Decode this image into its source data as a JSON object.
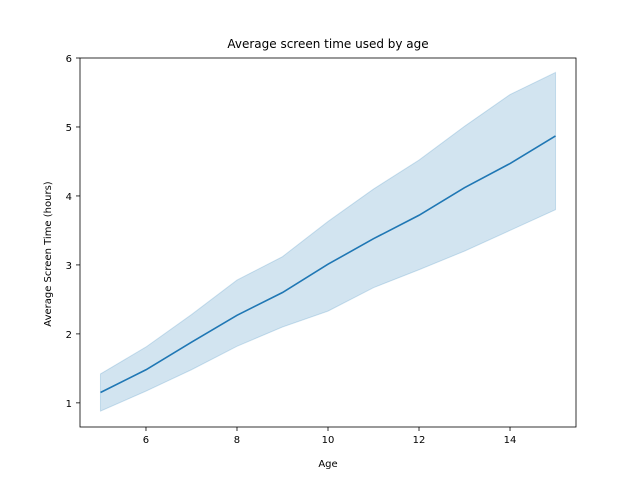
{
  "chart_data": {
    "type": "line",
    "title": "Average screen time used by age",
    "xlabel": "Age",
    "ylabel": "Average Screen Time (hours)",
    "xlim": [
      4.55,
      15.45
    ],
    "ylim": [
      0.65,
      6.0
    ],
    "xticks": [
      6,
      8,
      10,
      12,
      14
    ],
    "yticks": [
      1,
      2,
      3,
      4,
      5,
      6
    ],
    "grid": false,
    "series": [
      {
        "x": [
          5,
          6,
          7,
          8,
          9,
          10,
          11,
          12,
          13,
          14,
          15
        ],
        "y": [
          1.15,
          1.48,
          1.88,
          2.27,
          2.6,
          3.01,
          3.38,
          3.72,
          4.12,
          4.47,
          4.87
        ],
        "ci_lower": [
          0.88,
          1.17,
          1.48,
          1.82,
          2.1,
          2.33,
          2.67,
          2.93,
          3.2,
          3.5,
          3.8
        ],
        "ci_upper": [
          1.42,
          1.81,
          2.28,
          2.78,
          3.12,
          3.63,
          4.1,
          4.52,
          5.01,
          5.47,
          5.79
        ],
        "color": "#1f77b4"
      }
    ]
  }
}
